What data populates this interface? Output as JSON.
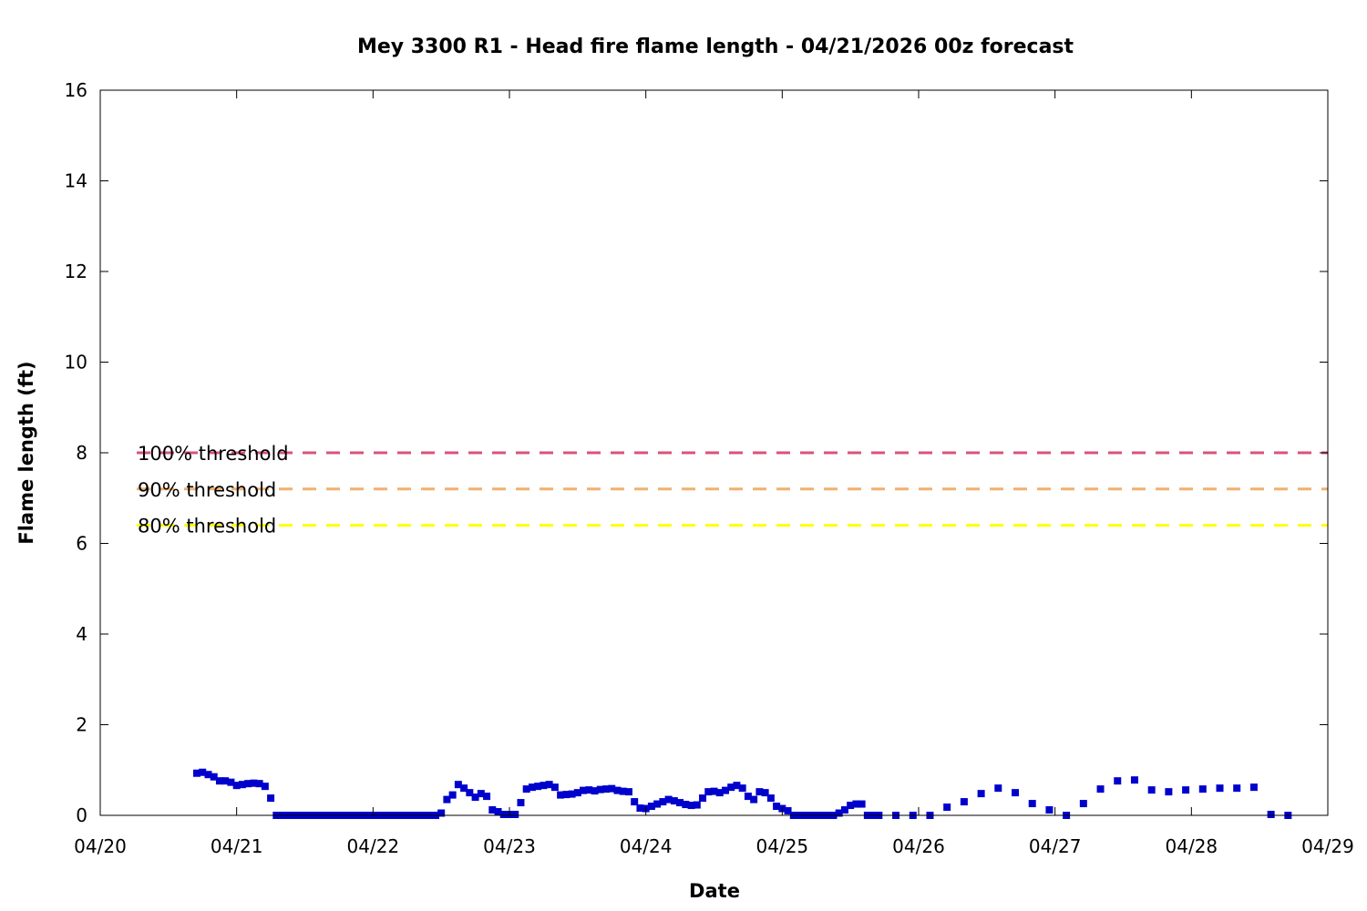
{
  "chart_data": {
    "type": "scatter",
    "title": "Mey 3300 R1 - Head fire flame length - 04/21/2026 00z forecast",
    "xlabel": "Date",
    "ylabel": "Flame length (ft)",
    "xlim": [
      "04/20",
      "04/29"
    ],
    "ylim": [
      0,
      16
    ],
    "x_ticks": [
      "04/20",
      "04/21",
      "04/22",
      "04/23",
      "04/24",
      "04/25",
      "04/26",
      "04/27",
      "04/28",
      "04/29"
    ],
    "y_ticks": [
      0,
      2,
      4,
      6,
      8,
      10,
      12,
      14,
      16
    ],
    "grid": false,
    "series_color": "#0000cc",
    "thresholds": [
      {
        "label": "100% threshold",
        "value": 8.0,
        "color": "#d9537a"
      },
      {
        "label": "90% threshold",
        "value": 7.2,
        "color": "#f0b070"
      },
      {
        "label": "80% threshold",
        "value": 6.4,
        "color": "#ffff00"
      }
    ],
    "series": [
      {
        "x": [
          "04/20 17:00",
          "04/20 18:00",
          "04/20 19:00",
          "04/20 20:00",
          "04/20 21:00",
          "04/20 22:00",
          "04/20 23:00",
          "04/21 00:00",
          "04/21 01:00",
          "04/21 02:00",
          "04/21 03:00",
          "04/21 04:00",
          "04/21 05:00",
          "04/21 06:00",
          "04/21 07:00",
          "04/21 08:00",
          "04/21 09:00",
          "04/21 10:00",
          "04/21 11:00",
          "04/21 12:00",
          "04/21 13:00",
          "04/21 14:00",
          "04/21 15:00",
          "04/21 16:00",
          "04/21 17:00",
          "04/21 18:00",
          "04/21 19:00",
          "04/21 20:00",
          "04/21 21:00",
          "04/21 22:00",
          "04/21 23:00",
          "04/22 00:00",
          "04/22 01:00",
          "04/22 02:00",
          "04/22 03:00",
          "04/22 04:00",
          "04/22 05:00",
          "04/22 06:00",
          "04/22 07:00",
          "04/22 08:00",
          "04/22 09:00",
          "04/22 10:00",
          "04/22 11:00",
          "04/22 12:00",
          "04/22 13:00",
          "04/22 14:00",
          "04/22 15:00",
          "04/22 16:00",
          "04/22 17:00",
          "04/22 18:00",
          "04/22 19:00",
          "04/22 20:00",
          "04/22 21:00",
          "04/22 22:00",
          "04/22 23:00",
          "04/23 00:00",
          "04/23 01:00",
          "04/23 02:00",
          "04/23 03:00",
          "04/23 04:00",
          "04/23 05:00",
          "04/23 06:00",
          "04/23 07:00",
          "04/23 08:00",
          "04/23 09:00",
          "04/23 10:00",
          "04/23 11:00",
          "04/23 12:00",
          "04/23 13:00",
          "04/23 14:00",
          "04/23 15:00",
          "04/23 16:00",
          "04/23 17:00",
          "04/23 18:00",
          "04/23 19:00",
          "04/23 20:00",
          "04/23 21:00",
          "04/23 22:00",
          "04/23 23:00",
          "04/24 00:00",
          "04/24 01:00",
          "04/24 02:00",
          "04/24 03:00",
          "04/24 04:00",
          "04/24 05:00",
          "04/24 06:00",
          "04/24 07:00",
          "04/24 08:00",
          "04/24 09:00",
          "04/24 10:00",
          "04/24 11:00",
          "04/24 12:00",
          "04/24 13:00",
          "04/24 14:00",
          "04/24 15:00",
          "04/24 16:00",
          "04/24 17:00",
          "04/24 18:00",
          "04/24 19:00",
          "04/24 20:00",
          "04/24 21:00",
          "04/24 22:00",
          "04/24 23:00",
          "04/25 00:00",
          "04/25 01:00",
          "04/25 02:00",
          "04/25 03:00",
          "04/25 04:00",
          "04/25 05:00",
          "04/25 06:00",
          "04/25 07:00",
          "04/25 08:00",
          "04/25 09:00",
          "04/25 10:00",
          "04/25 11:00",
          "04/25 12:00",
          "04/25 13:00",
          "04/25 14:00",
          "04/25 15:00",
          "04/25 16:00",
          "04/25 17:00",
          "04/25 20:00",
          "04/25 23:00",
          "04/26 02:00",
          "04/26 05:00",
          "04/26 08:00",
          "04/26 11:00",
          "04/26 14:00",
          "04/26 17:00",
          "04/26 20:00",
          "04/26 23:00",
          "04/27 02:00",
          "04/27 05:00",
          "04/27 08:00",
          "04/27 11:00",
          "04/27 14:00",
          "04/27 17:00",
          "04/27 20:00",
          "04/27 23:00",
          "04/28 02:00",
          "04/28 05:00",
          "04/28 08:00",
          "04/28 11:00",
          "04/28 14:00",
          "04/28 17:00"
        ],
        "y": [
          0.93,
          0.95,
          0.9,
          0.85,
          0.76,
          0.76,
          0.73,
          0.66,
          0.68,
          0.7,
          0.71,
          0.7,
          0.64,
          0.38,
          0.0,
          0.0,
          0.0,
          0.0,
          0.0,
          0.0,
          0.0,
          0.0,
          0.0,
          0.0,
          0.0,
          0.0,
          0.0,
          0.0,
          0.0,
          0.0,
          0.0,
          0.0,
          0.0,
          0.0,
          0.0,
          0.0,
          0.0,
          0.0,
          0.0,
          0.0,
          0.0,
          0.0,
          0.0,
          0.05,
          0.35,
          0.45,
          0.68,
          0.6,
          0.5,
          0.4,
          0.48,
          0.42,
          0.12,
          0.08,
          0.02,
          0.02,
          0.02,
          0.28,
          0.58,
          0.62,
          0.64,
          0.66,
          0.68,
          0.62,
          0.45,
          0.46,
          0.47,
          0.5,
          0.55,
          0.56,
          0.54,
          0.57,
          0.58,
          0.59,
          0.55,
          0.53,
          0.52,
          0.3,
          0.16,
          0.15,
          0.2,
          0.25,
          0.3,
          0.35,
          0.32,
          0.28,
          0.24,
          0.22,
          0.23,
          0.38,
          0.52,
          0.53,
          0.5,
          0.55,
          0.62,
          0.66,
          0.6,
          0.42,
          0.35,
          0.52,
          0.5,
          0.38,
          0.2,
          0.15,
          0.1,
          0.0,
          0.0,
          0.0,
          0.0,
          0.0,
          0.0,
          0.0,
          0.0,
          0.05,
          0.12,
          0.22,
          0.25,
          0.25,
          0.0,
          0.0,
          0.0,
          0.0,
          0.0,
          0.0,
          0.18,
          0.3,
          0.48,
          0.6,
          0.5,
          0.26,
          0.12,
          0.0,
          0.26,
          0.58,
          0.76,
          0.78,
          0.56,
          0.52,
          0.56,
          0.58,
          0.6,
          0.6,
          0.62,
          0.02,
          0.0
        ]
      }
    ]
  }
}
